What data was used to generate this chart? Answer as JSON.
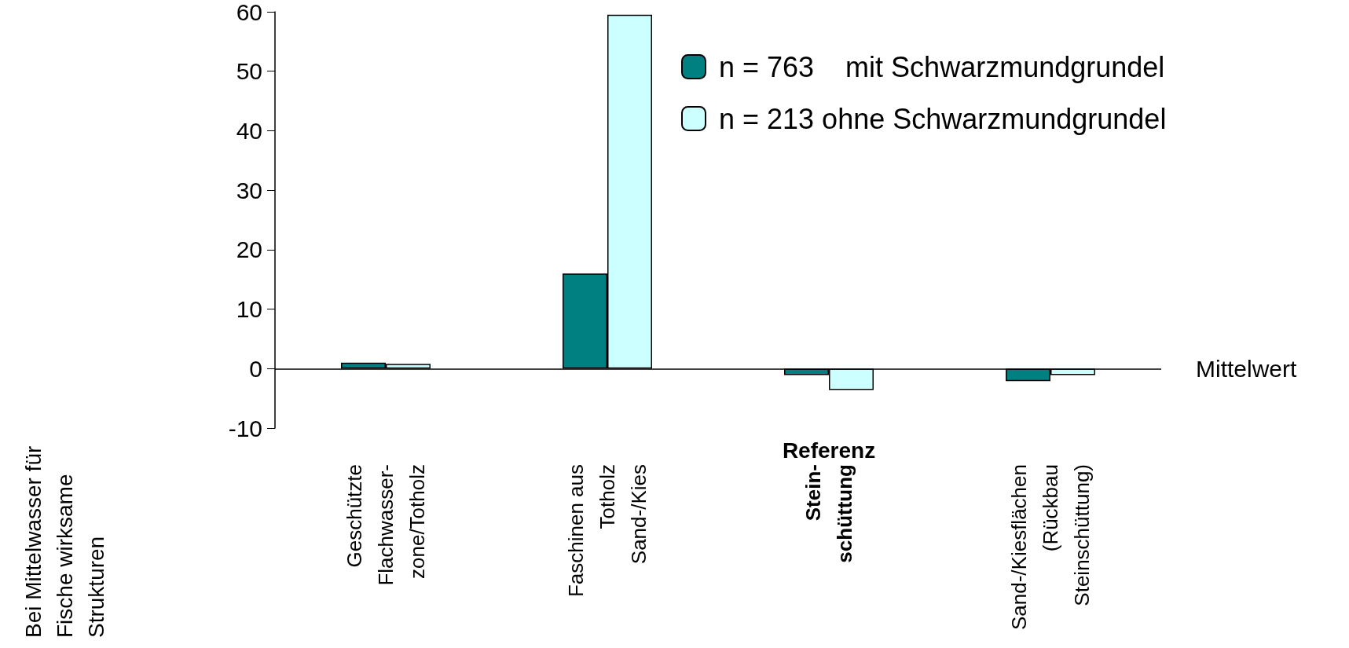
{
  "chart_data": {
    "type": "bar",
    "categories": [
      "Geschützte\nFlachwasser-\nzone/Totholz",
      "Faschinen aus\nTotholz\nSand-/Kies",
      "Stein-\nschüttung",
      "Sand-/Kiesflächen\n(Rückbau\nSteinschüttung)"
    ],
    "series": [
      {
        "name": "n = 763    mit Schwarzmundgrundel",
        "color": "#008080",
        "values": [
          1.0,
          16,
          -1.1,
          -2.1
        ]
      },
      {
        "name": "n = 213 ohne Schwarzmundgrundel",
        "color": "#ccffff",
        "values": [
          0.8,
          59.5,
          -3.6,
          -1.1
        ]
      }
    ],
    "ylim": [
      -10,
      60
    ],
    "yticks": [
      -10,
      0,
      10,
      20,
      30,
      40,
      50,
      60
    ],
    "ref_lines": [
      {
        "axis": "y",
        "value": 0,
        "label": "Mittelwert"
      }
    ],
    "annotations": [
      "Referenz",
      "Bei Mittelwasser für\nFische wirksame\nStrukturen"
    ],
    "grid": false,
    "legend": "top right"
  }
}
